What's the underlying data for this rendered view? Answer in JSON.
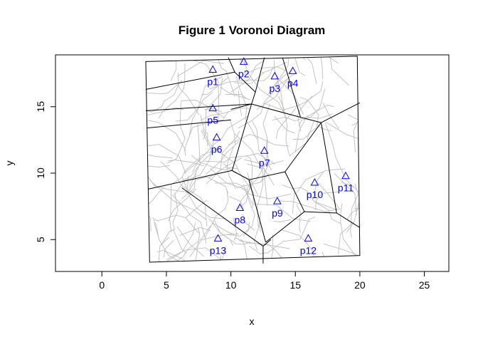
{
  "chart_data": {
    "type": "scatter",
    "title": "Figure 1 Voronoi Diagram",
    "xlabel": "x",
    "ylabel": "y",
    "xlim": [
      -3.6,
      26.9
    ],
    "ylim": [
      2.6,
      18.9
    ],
    "x_ticks": [
      0,
      5,
      10,
      15,
      20,
      25
    ],
    "y_ticks": [
      5,
      10,
      15
    ],
    "point_color": "#0000ff",
    "edge_color": "#000000",
    "street_color": "#bdbdbd",
    "boundary": [
      [
        3.4,
        18.4
      ],
      [
        19.8,
        18.8
      ],
      [
        20.0,
        3.8
      ],
      [
        3.7,
        3.3
      ]
    ],
    "points": [
      {
        "label": "p1",
        "x": 8.6,
        "y": 17.8
      },
      {
        "label": "p2",
        "x": 11.0,
        "y": 18.4
      },
      {
        "label": "p3",
        "x": 13.4,
        "y": 17.3
      },
      {
        "label": "p4",
        "x": 14.8,
        "y": 17.7
      },
      {
        "label": "p5",
        "x": 8.6,
        "y": 14.9
      },
      {
        "label": "p6",
        "x": 8.9,
        "y": 12.7
      },
      {
        "label": "p7",
        "x": 12.6,
        "y": 11.7
      },
      {
        "label": "p8",
        "x": 10.7,
        "y": 7.4
      },
      {
        "label": "p9",
        "x": 13.6,
        "y": 7.9
      },
      {
        "label": "p10",
        "x": 16.5,
        "y": 9.3
      },
      {
        "label": "p11",
        "x": 18.9,
        "y": 9.8
      },
      {
        "label": "p12",
        "x": 16.0,
        "y": 5.1
      },
      {
        "label": "p13",
        "x": 9.0,
        "y": 5.1
      }
    ],
    "voronoi_edges": [
      [
        [
          10.3,
          17.6
        ],
        [
          11.9,
          16.1
        ]
      ],
      [
        [
          9.8,
          18.7
        ],
        [
          10.3,
          17.6
        ]
      ],
      [
        [
          3.4,
          16.3
        ],
        [
          10.3,
          17.6
        ]
      ],
      [
        [
          11.9,
          16.1
        ],
        [
          12.6,
          18.7
        ]
      ],
      [
        [
          11.9,
          16.1
        ],
        [
          11.6,
          15.2
        ]
      ],
      [
        [
          14.0,
          18.7
        ],
        [
          15.4,
          14.2
        ]
      ],
      [
        [
          11.6,
          15.2
        ],
        [
          3.4,
          14.7
        ]
      ],
      [
        [
          11.6,
          15.2
        ],
        [
          10.0,
          14.8
        ]
      ],
      [
        [
          11.6,
          15.2
        ],
        [
          15.4,
          14.2
        ]
      ],
      [
        [
          3.5,
          13.4
        ],
        [
          10.0,
          14.0
        ]
      ],
      [
        [
          15.4,
          14.2
        ],
        [
          17.0,
          13.8
        ]
      ],
      [
        [
          17.0,
          13.8
        ],
        [
          20.0,
          15.3
        ]
      ],
      [
        [
          11.6,
          15.2
        ],
        [
          10.1,
          10.2
        ]
      ],
      [
        [
          10.1,
          10.2
        ],
        [
          3.6,
          8.8
        ]
      ],
      [
        [
          10.1,
          10.2
        ],
        [
          11.4,
          9.5
        ]
      ],
      [
        [
          11.4,
          9.5
        ],
        [
          14.2,
          10.1
        ]
      ],
      [
        [
          14.2,
          10.1
        ],
        [
          17.0,
          13.8
        ]
      ],
      [
        [
          17.0,
          13.8
        ],
        [
          18.2,
          7.0
        ]
      ],
      [
        [
          14.2,
          10.1
        ],
        [
          15.7,
          7.1
        ]
      ],
      [
        [
          15.7,
          7.1
        ],
        [
          18.2,
          7.0
        ]
      ],
      [
        [
          18.2,
          7.0
        ],
        [
          20.0,
          5.9
        ]
      ],
      [
        [
          15.7,
          7.1
        ],
        [
          12.7,
          4.8
        ]
      ],
      [
        [
          11.4,
          9.5
        ],
        [
          12.7,
          4.8
        ]
      ],
      [
        [
          6.2,
          8.9
        ],
        [
          12.5,
          4.5
        ]
      ],
      [
        [
          12.5,
          4.5
        ],
        [
          12.5,
          3.2
        ]
      ],
      [
        [
          12.5,
          4.5
        ],
        [
          13.1,
          5.0
        ]
      ]
    ]
  }
}
